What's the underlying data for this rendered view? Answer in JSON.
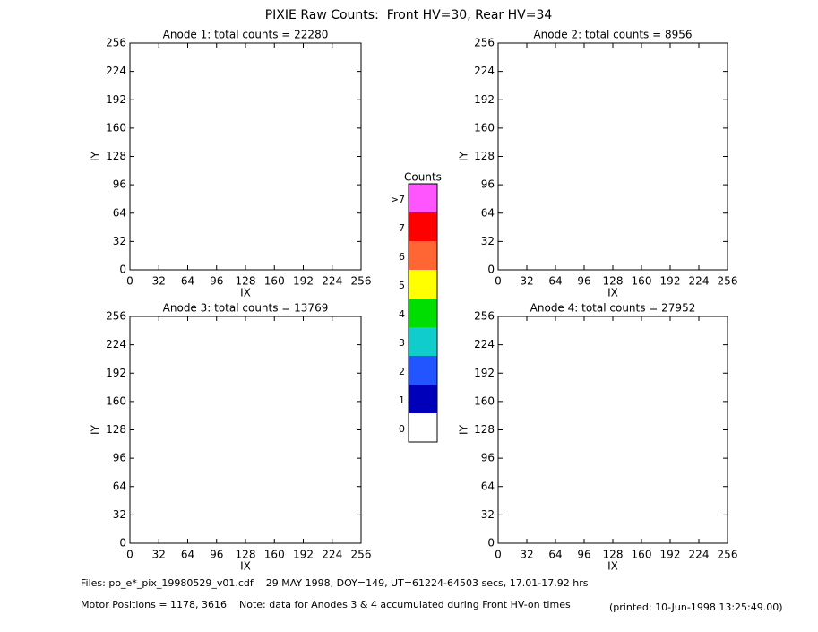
{
  "title": "PIXIE Raw Counts:  Front HV=30, Rear HV=34",
  "chart_data": [
    {
      "type": "heatmap",
      "title": "Anode 1: total counts = 22280",
      "xlabel": "IX",
      "ylabel": "IY",
      "xlim": [
        0,
        256
      ],
      "ylim": [
        0,
        256
      ],
      "xticks": [
        0,
        32,
        64,
        96,
        128,
        160,
        192,
        224,
        256
      ],
      "yticks": [
        0,
        32,
        64,
        96,
        128,
        160,
        192,
        224,
        256
      ]
    },
    {
      "type": "heatmap",
      "title": "Anode 2: total counts = 8956",
      "xlabel": "IX",
      "ylabel": "IY",
      "xlim": [
        0,
        256
      ],
      "ylim": [
        0,
        256
      ],
      "xticks": [
        0,
        32,
        64,
        96,
        128,
        160,
        192,
        224,
        256
      ],
      "yticks": [
        0,
        32,
        64,
        96,
        128,
        160,
        192,
        224,
        256
      ]
    },
    {
      "type": "heatmap",
      "title": "Anode 3: total counts = 13769",
      "xlabel": "IX",
      "ylabel": "IY",
      "xlim": [
        0,
        256
      ],
      "ylim": [
        0,
        256
      ],
      "xticks": [
        0,
        32,
        64,
        96,
        128,
        160,
        192,
        224,
        256
      ],
      "yticks": [
        0,
        32,
        64,
        96,
        128,
        160,
        192,
        224,
        256
      ]
    },
    {
      "type": "heatmap",
      "title": "Anode 4: total counts = 27952",
      "xlabel": "IX",
      "ylabel": "IY",
      "xlim": [
        0,
        256
      ],
      "ylim": [
        0,
        256
      ],
      "xticks": [
        0,
        32,
        64,
        96,
        128,
        160,
        192,
        224,
        256
      ],
      "yticks": [
        0,
        32,
        64,
        96,
        128,
        160,
        192,
        224,
        256
      ]
    }
  ],
  "colorbar": {
    "title": "Counts",
    "levels": [
      {
        "label": ">7",
        "color": "#ff55ff"
      },
      {
        "label": "7",
        "color": "#ff0000"
      },
      {
        "label": "6",
        "color": "#ff6633"
      },
      {
        "label": "5",
        "color": "#ffff00"
      },
      {
        "label": "4",
        "color": "#00dd00"
      },
      {
        "label": "3",
        "color": "#11cccc"
      },
      {
        "label": "2",
        "color": "#2255ff"
      },
      {
        "label": "1",
        "color": "#0000bb"
      },
      {
        "label": "0",
        "color": "#ffffff"
      }
    ]
  },
  "footer": {
    "files": "Files: po_e*_pix_19980529_v01.cdf    29 MAY 1998, DOY=149, UT=61224-64503 secs, 17.01-17.92 hrs",
    "motor": "Motor Positions = 1178, 3616    Note: data for Anodes 3 & 4 accumulated during Front HV-on times",
    "printed": "(printed: 10-Jun-1998 13:25:49.00)"
  }
}
